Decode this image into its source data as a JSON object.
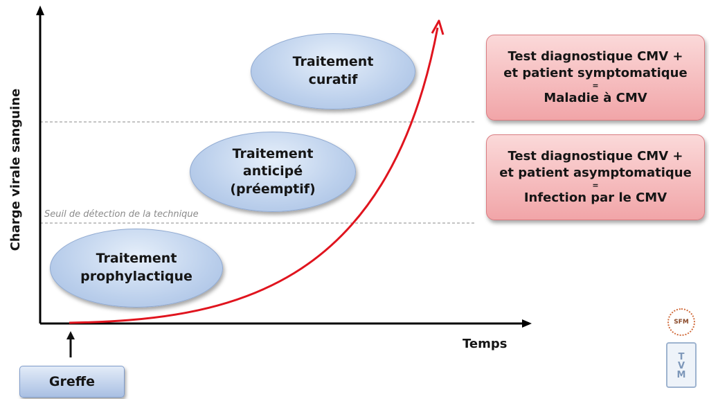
{
  "axes": {
    "y_label": "Charge virale sanguine",
    "x_label": "Temps"
  },
  "threshold_label": "Seuil de détection de la technique",
  "treatments": {
    "curative": "Traitement\ncuratif",
    "preemptive": "Traitement\nanticipé\n(préemptif)",
    "prophylactic": "Traitement\nprophylactique"
  },
  "diagnosis": {
    "disease": {
      "line1": "Test diagnostique CMV +",
      "line2": "et patient symptomatique",
      "equals": "=",
      "result": "Maladie à CMV"
    },
    "infection": {
      "line1": "Test diagnostique CMV +",
      "line2": "et patient asymptomatique",
      "equals": "=",
      "result": "Infection par le CMV"
    }
  },
  "event": {
    "label": "Greffe"
  },
  "logos": {
    "sfm": "SFM",
    "tvm": "TVM"
  },
  "colors": {
    "curve": "#e0141e",
    "axis": "#000000",
    "dashed_line": "#8a8a8a",
    "ellipse_fill": "#bcd0ec",
    "box_fill": "#f1a5a8"
  }
}
